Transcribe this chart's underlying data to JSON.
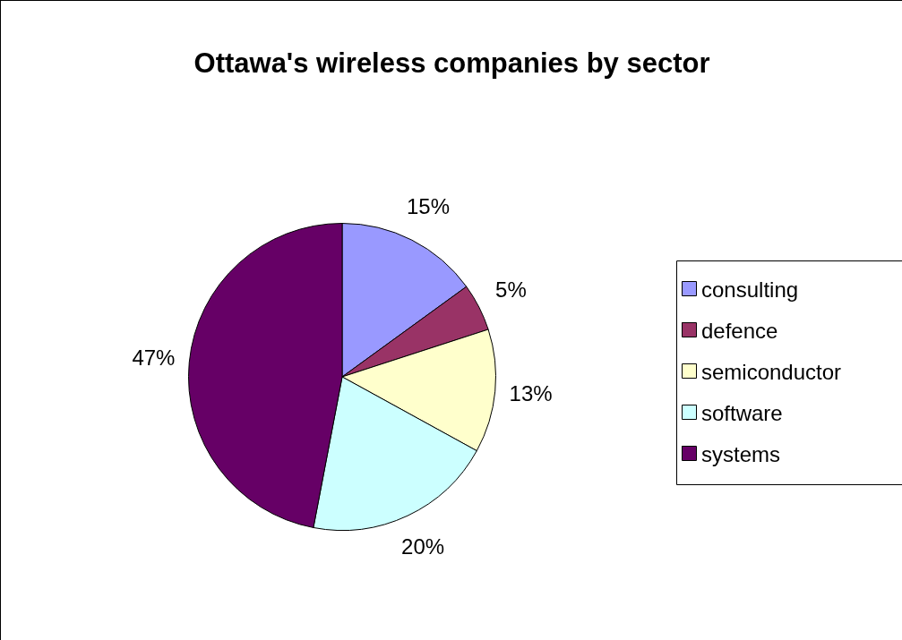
{
  "chart_data": {
    "type": "pie",
    "title": "Ottawa's wireless companies by sector",
    "categories": [
      "consulting",
      "defence",
      "semiconductor",
      "software",
      "systems"
    ],
    "values": [
      15,
      5,
      13,
      20,
      47
    ],
    "colors": [
      "#9999ff",
      "#993366",
      "#ffffcc",
      "#ccffff",
      "#660066"
    ],
    "value_labels": [
      "15%",
      "5%",
      "13%",
      "20%",
      "47%"
    ],
    "legend": "right"
  }
}
